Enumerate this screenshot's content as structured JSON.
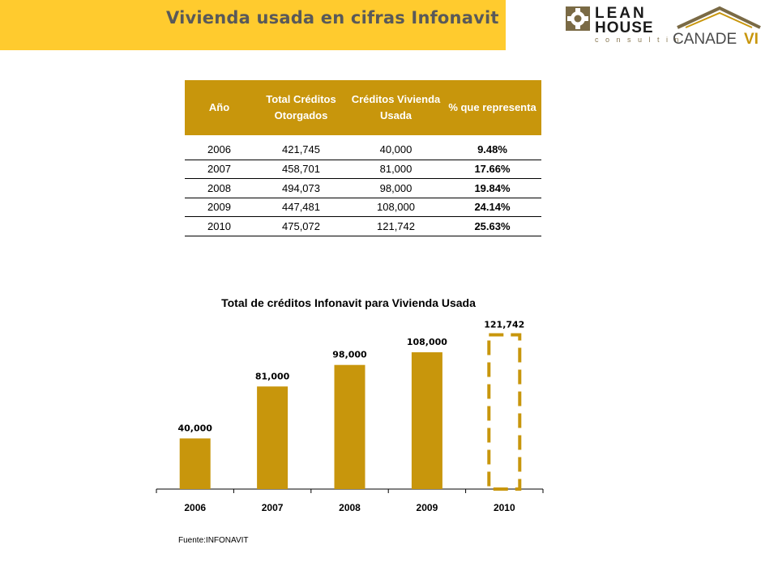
{
  "header": {
    "title": "Vivienda usada en cifras Infonavit",
    "band_color": "#ffcb2e",
    "logos": [
      {
        "name": "lean-house-consulting-logo",
        "lines": [
          "LEAN",
          "HOUSE",
          "c o n s u l t i n g"
        ]
      },
      {
        "name": "canadevi-logo",
        "text_a": "CANADE",
        "text_b": "VI"
      }
    ]
  },
  "table": {
    "header_color": "#c8960c",
    "columns": [
      "Año",
      "Total Créditos Otorgados",
      "Créditos Vivienda Usada",
      "% que representa"
    ],
    "rows": [
      {
        "year": "2006",
        "total": "421,745",
        "used": "40,000",
        "pct": "9.48%"
      },
      {
        "year": "2007",
        "total": "458,701",
        "used": "81,000",
        "pct": "17.66%"
      },
      {
        "year": "2008",
        "total": "494,073",
        "used": "98,000",
        "pct": "19.84%"
      },
      {
        "year": "2009",
        "total": "447,481",
        "used": "108,000",
        "pct": "24.14%"
      },
      {
        "year": "2010",
        "total": "475,072",
        "used": "121,742",
        "pct": "25.63%"
      }
    ]
  },
  "chart_data": {
    "type": "bar",
    "title": "Total de créditos Infonavit para Vivienda Usada",
    "categories": [
      "2006",
      "2007",
      "2008",
      "2009",
      "2010"
    ],
    "values": [
      40000,
      81000,
      98000,
      108000,
      121742
    ],
    "value_labels": [
      "40,000",
      "81,000",
      "98,000",
      "108,000",
      "121,742"
    ],
    "ylim": [
      0,
      140000
    ],
    "grid": false,
    "bar_color": "#c8960c",
    "highlight_last_dashed": true
  },
  "footer": {
    "source": "Fuente:INFONAVIT"
  }
}
